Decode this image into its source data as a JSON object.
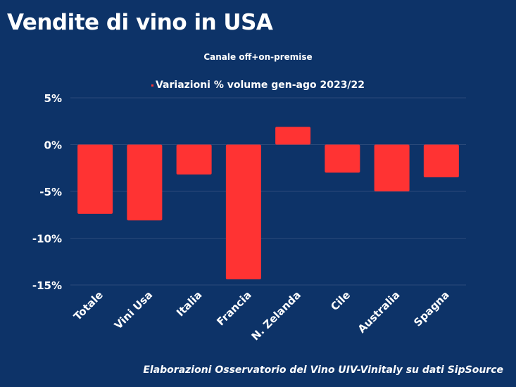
{
  "title": "Vendite di vino in USA",
  "subtitle": "Canale off+on-premise",
  "source": "Elaborazioni Osservatorio del Vino UIV-Vinitaly su dati SipSource",
  "colors": {
    "background": "#0d3368",
    "bar": "#ff3333",
    "grid": "#2a4a7a"
  },
  "chart_data": {
    "type": "bar",
    "categories": [
      "Totale",
      "Vini Usa",
      "Italia",
      "Francia",
      "N. Zelanda",
      "Cile",
      "Australia",
      "Spagna"
    ],
    "series": [
      {
        "name": "Variazioni % volume gen-ago 2023/22",
        "values": [
          -7.4,
          -8.1,
          -3.2,
          -14.4,
          1.9,
          -3.0,
          -5.0,
          -3.5
        ]
      }
    ],
    "ylim": [
      -15,
      5
    ],
    "yticks": [
      5,
      0,
      -5,
      -10,
      -15
    ],
    "ytick_labels": [
      "5%",
      "0%",
      "-5%",
      "-10%",
      "-15%"
    ],
    "grid": true,
    "legend": "top-center"
  }
}
